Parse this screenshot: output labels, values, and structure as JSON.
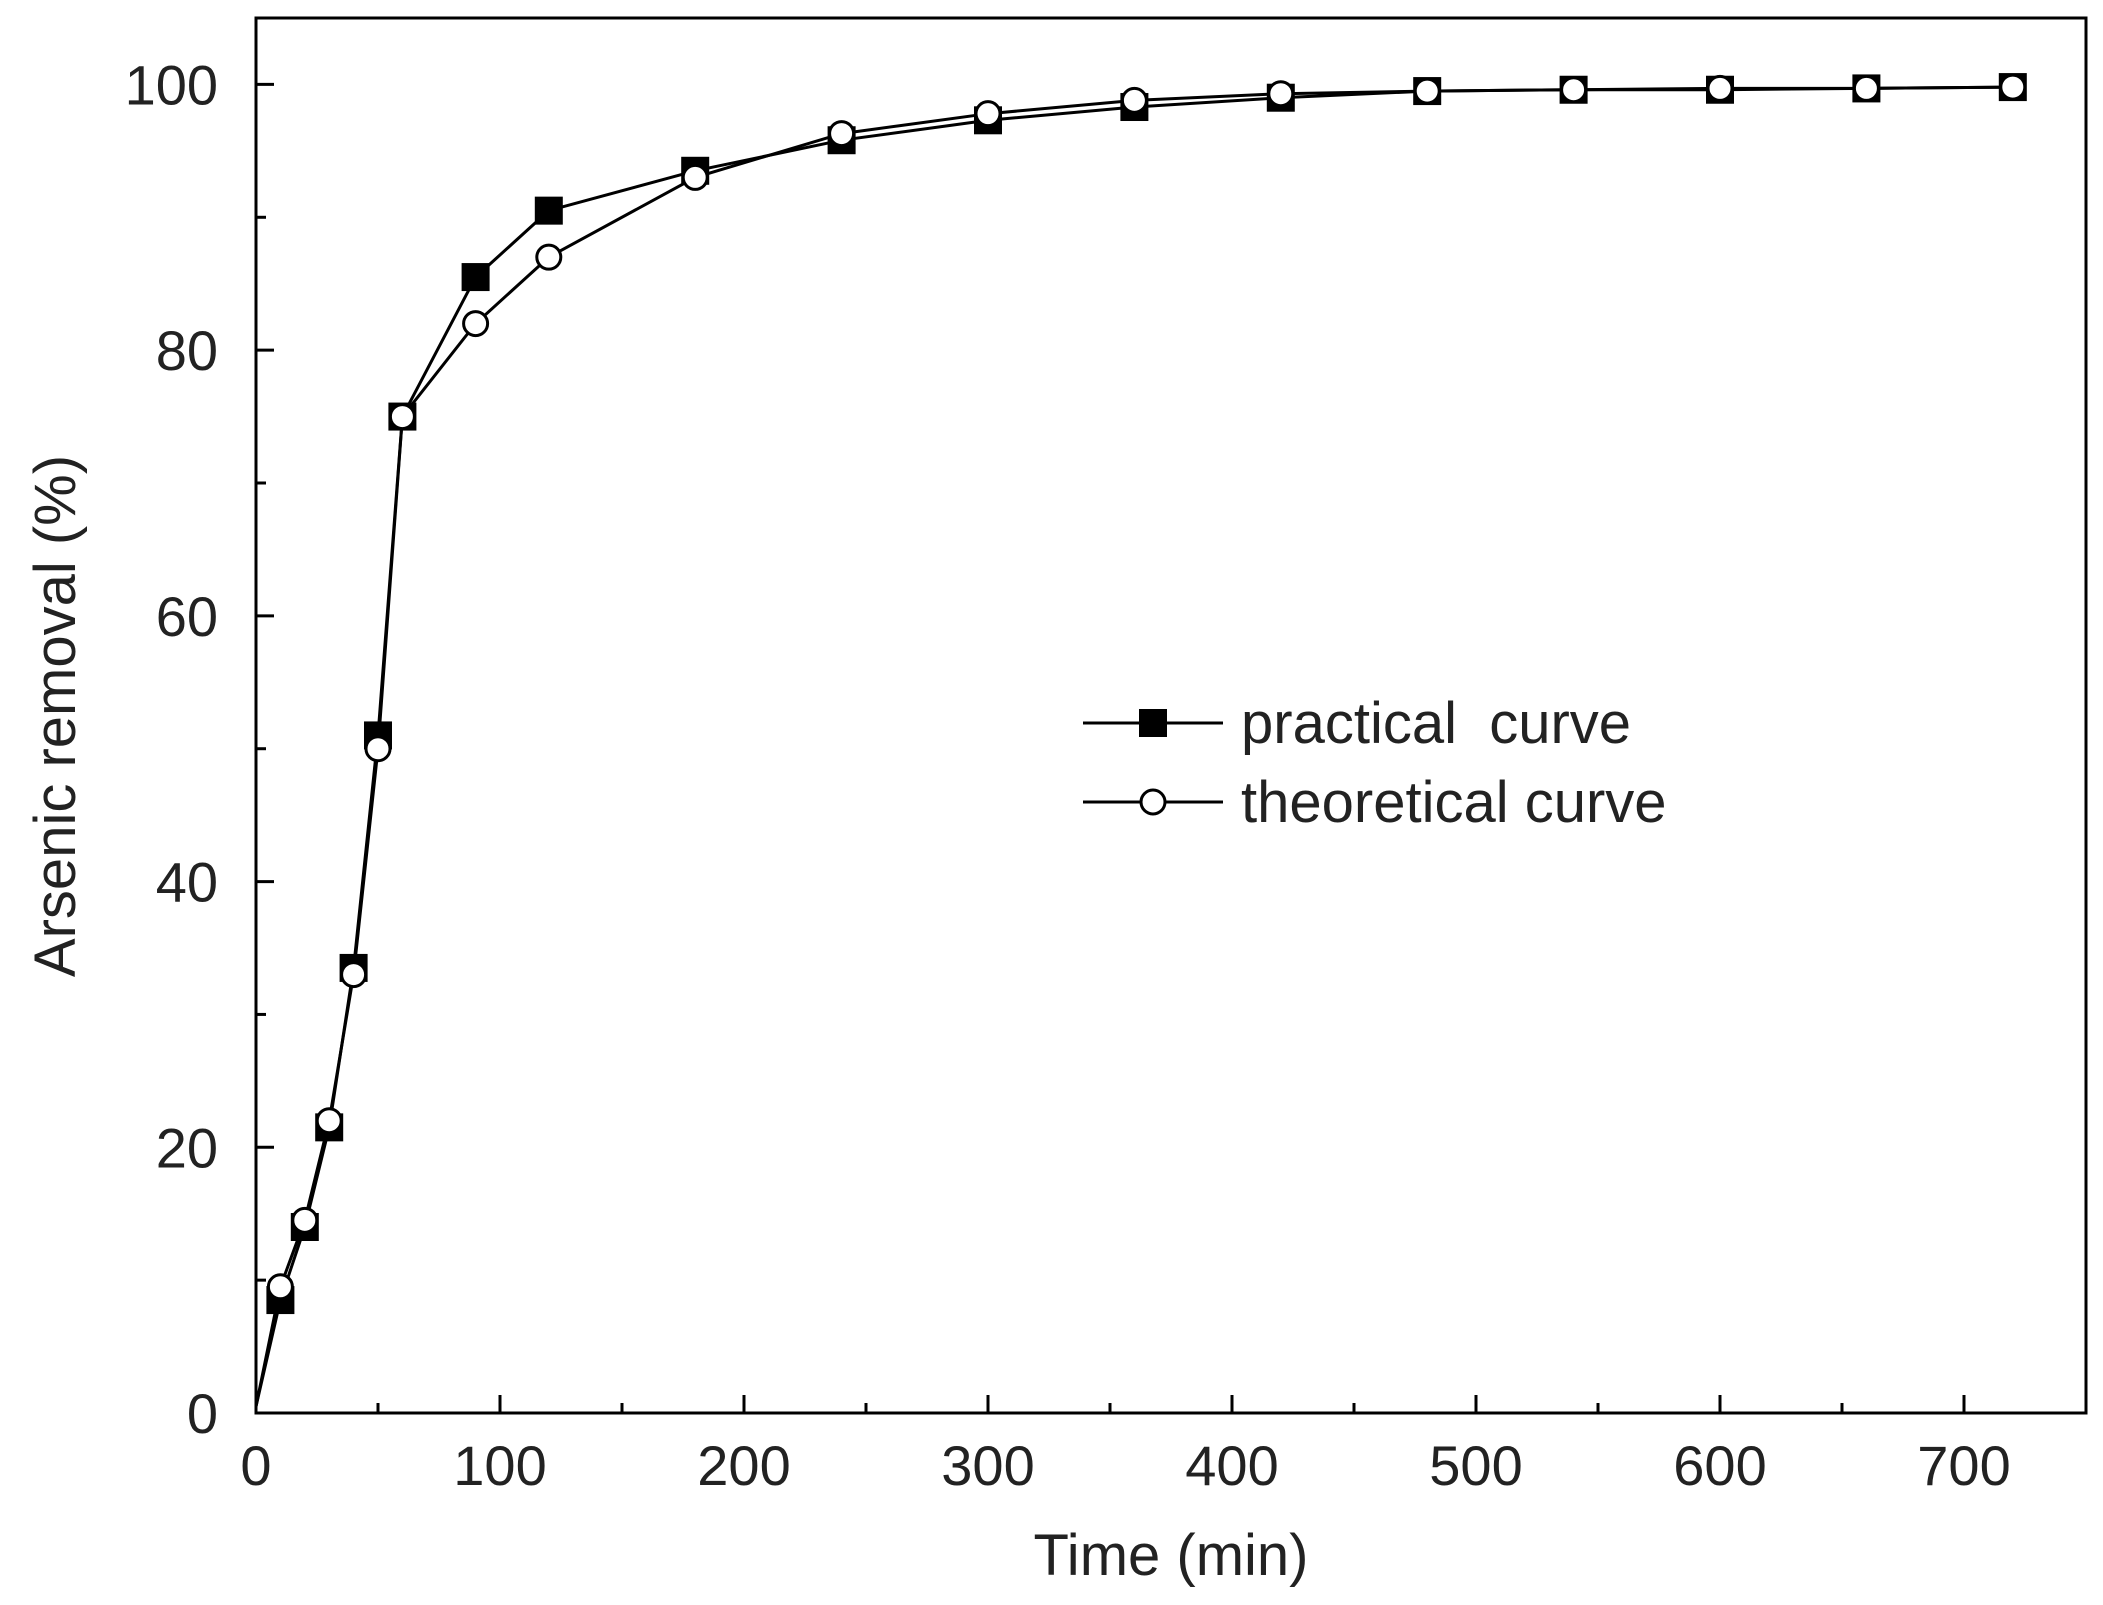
{
  "chart_data": {
    "type": "line",
    "xlabel": "Time (min)",
    "ylabel": "Arsenic removal (%)",
    "xlim": [
      0,
      750
    ],
    "ylim": [
      0,
      105
    ],
    "x_ticks": [
      0,
      100,
      200,
      300,
      400,
      500,
      600,
      700
    ],
    "y_ticks": [
      0,
      20,
      40,
      60,
      80,
      100
    ],
    "x_minor_step": 50,
    "y_minor_step": 10,
    "grid": false,
    "legend_position": "center-right",
    "series": [
      {
        "name": "practical  curve",
        "marker": "filled-square",
        "color": "#000000",
        "points": [
          [
            0,
            0.5
          ],
          [
            10,
            8.5
          ],
          [
            20,
            14
          ],
          [
            30,
            21.5
          ],
          [
            40,
            33.5
          ],
          [
            50,
            51
          ],
          [
            60,
            75
          ],
          [
            90,
            85.5
          ],
          [
            120,
            90.5
          ],
          [
            180,
            93.5
          ],
          [
            240,
            95.8
          ],
          [
            300,
            97.3
          ],
          [
            360,
            98.3
          ],
          [
            420,
            99
          ],
          [
            480,
            99.5
          ],
          [
            540,
            99.6
          ],
          [
            600,
            99.6
          ],
          [
            660,
            99.7
          ],
          [
            720,
            99.8
          ]
        ]
      },
      {
        "name": "theoretical curve",
        "marker": "open-circle",
        "color": "#000000",
        "points": [
          [
            0,
            0.5
          ],
          [
            10,
            9.5
          ],
          [
            20,
            14.5
          ],
          [
            30,
            22
          ],
          [
            40,
            33
          ],
          [
            50,
            50
          ],
          [
            60,
            75
          ],
          [
            90,
            82
          ],
          [
            120,
            87
          ],
          [
            180,
            93
          ],
          [
            240,
            96.3
          ],
          [
            300,
            97.8
          ],
          [
            360,
            98.8
          ],
          [
            420,
            99.3
          ],
          [
            480,
            99.5
          ],
          [
            540,
            99.6
          ],
          [
            600,
            99.7
          ],
          [
            660,
            99.7
          ],
          [
            720,
            99.8
          ]
        ]
      }
    ]
  }
}
